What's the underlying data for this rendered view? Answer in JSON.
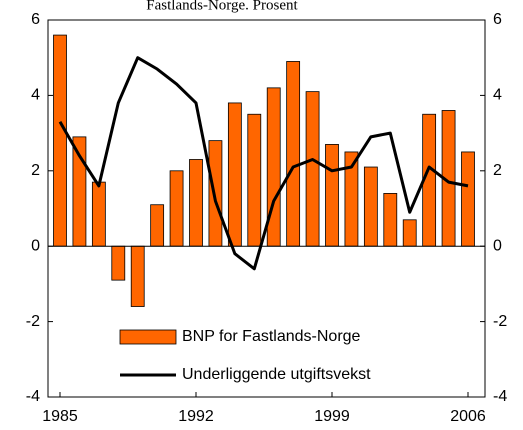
{
  "chart_data": {
    "type": "bar_line",
    "title": "Fastlands-Norge. Prosent",
    "x": [
      1985,
      1986,
      1987,
      1988,
      1989,
      1990,
      1991,
      1992,
      1993,
      1994,
      1995,
      1996,
      1997,
      1998,
      1999,
      2000,
      2001,
      2002,
      2003,
      2004,
      2005,
      2006
    ],
    "xticks": [
      1985,
      1992,
      1999,
      2006
    ],
    "series": [
      {
        "name": "BNP for Fastlands-Norge",
        "color": "#ff6600",
        "type": "bar",
        "values": [
          5.6,
          2.9,
          1.7,
          -0.9,
          -1.6,
          1.1,
          2.0,
          2.3,
          2.8,
          3.8,
          3.5,
          4.2,
          4.9,
          4.1,
          2.7,
          2.5,
          2.1,
          1.4,
          0.7,
          3.5,
          3.6,
          2.5
        ]
      },
      {
        "name": "Underliggende utgiftsvekst",
        "color": "#000000",
        "type": "line",
        "axis": "y2",
        "values": [
          3.3,
          2.4,
          1.6,
          3.8,
          5.0,
          4.7,
          4.3,
          3.8,
          1.2,
          -0.2,
          -0.6,
          1.2,
          2.1,
          2.3,
          2.0,
          2.1,
          2.9,
          3.0,
          0.9,
          2.1,
          1.7,
          1.6
        ]
      }
    ],
    "ylim": [
      -4,
      6
    ],
    "yticks": [
      -4,
      -2,
      0,
      2,
      4,
      6
    ],
    "y2lim": [
      -4,
      6
    ],
    "y2ticks": [
      -4,
      -2,
      0,
      2,
      4,
      6
    ],
    "legend": "lower center"
  }
}
